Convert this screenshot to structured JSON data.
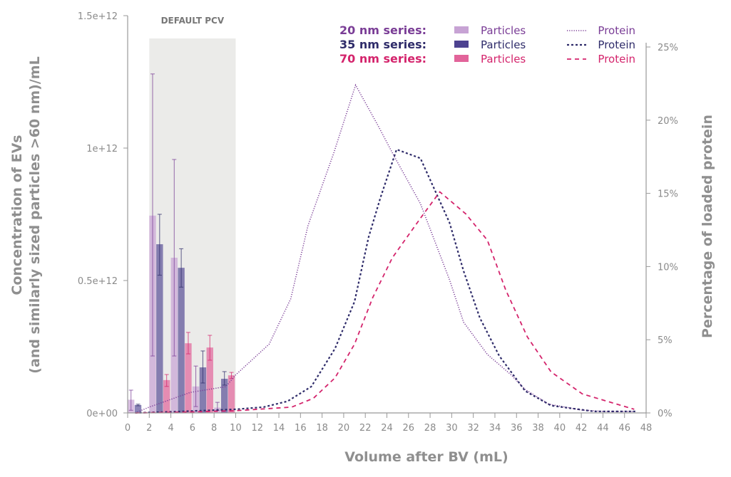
{
  "chart_data": {
    "type": "bar+line",
    "xlabel": "Volume after BV (mL)",
    "ylabel_left": [
      "Concentration of EVs",
      "(and similarly sized particles >60 nm)/mL"
    ],
    "ylabel_right": "Percentage of loaded protein",
    "xlim": [
      0,
      48
    ],
    "ylim_left": [
      0,
      1500000000000.0
    ],
    "ylim_right": [
      0,
      25
    ],
    "x_ticks": [
      "0",
      "2",
      "4",
      "6",
      "8",
      "10",
      "12",
      "14",
      "16",
      "18",
      "20",
      "22",
      "24",
      "26",
      "28",
      "30",
      "32",
      "34",
      "36",
      "38",
      "40",
      "42",
      "44",
      "46",
      "48"
    ],
    "y_left_ticks": [
      "0e+00",
      "0.5e+12",
      "1e+12",
      "1.5e+12"
    ],
    "y_right_ticks": [
      "0%",
      "5%",
      "10%",
      "15%",
      "20%",
      "25%"
    ],
    "grid": false,
    "shaded_region": {
      "label": "DEFAULT PCV",
      "x_range": [
        2,
        10
      ],
      "color": "#ebebe9"
    },
    "legend": {
      "placement": "top-right",
      "rows": [
        {
          "series": "20 nm series:",
          "bar_label": "Particles",
          "line_label": "Protein",
          "color": "#7a3d96",
          "bar_color": "#c7a3d4",
          "line_style": "dotted"
        },
        {
          "series": "35 nm series:",
          "bar_label": "Particles",
          "line_label": "Protein",
          "color": "#2f2c6a",
          "bar_color": "#4d4290",
          "line_style": "short-dashed"
        },
        {
          "series": "70 nm series:",
          "bar_label": "Particles",
          "line_label": "Protein",
          "color": "#d4246c",
          "bar_color": "#e2649a",
          "line_style": "dashed"
        }
      ]
    },
    "bar_groups": [
      [
        0,
        2
      ],
      [
        2,
        4
      ],
      [
        4,
        6
      ],
      [
        6,
        8
      ],
      [
        8,
        10
      ]
    ],
    "particles": [
      {
        "series": "20 nm",
        "values_e12": [
          0.05,
          0.745,
          0.586,
          0.1,
          0.02
        ],
        "err_high_e12": [
          0.086,
          1.28,
          0.957,
          0.177,
          0.04
        ],
        "err_low_e12": [
          0.01,
          0.215,
          0.215,
          0.024,
          0.01
        ]
      },
      {
        "series": "35 nm",
        "values_e12": [
          0.03,
          0.637,
          0.548,
          0.172,
          0.129
        ],
        "err_high_e12": [
          0.033,
          0.75,
          0.62,
          0.234,
          0.156
        ],
        "err_low_e12": [
          0.027,
          0.52,
          0.475,
          0.113,
          0.105
        ]
      },
      {
        "series": "70 nm",
        "values_e12": [
          0,
          0.124,
          0.263,
          0.247,
          0.142
        ],
        "err_high_e12": [
          0,
          0.145,
          0.304,
          0.293,
          0.153
        ],
        "err_low_e12": [
          0,
          0.1,
          0.223,
          0.199,
          0.13
        ]
      }
    ],
    "protein": [
      {
        "series": "20 nm",
        "x": [
          0.7,
          2,
          5.8,
          9.1,
          10,
          13.1,
          15.1,
          16.7,
          19.1,
          21.1,
          23.2,
          24.7,
          27.1,
          29.8,
          31.1,
          33.3,
          35.5,
          36.8,
          39,
          42,
          44,
          47
        ],
        "y": [
          0,
          0.4,
          1.4,
          1.8,
          2.6,
          4.7,
          7.8,
          12.8,
          17.8,
          22.4,
          19.6,
          17.5,
          14.3,
          9.1,
          6.2,
          4.0,
          2.6,
          1.6,
          0.6,
          0.2,
          0.1,
          0.1
        ]
      },
      {
        "series": "35 nm",
        "x": [
          0.7,
          5,
          10,
          12.6,
          14.8,
          17,
          19.2,
          21,
          22.3,
          23.4,
          24.9,
          27.1,
          29.8,
          31.1,
          32.6,
          34.4,
          36.8,
          39.2,
          43.2,
          47
        ],
        "y": [
          0,
          0.1,
          0.25,
          0.4,
          0.8,
          1.8,
          4.4,
          7.6,
          12,
          14.7,
          18,
          17.4,
          13,
          9.7,
          6.5,
          3.9,
          1.5,
          0.5,
          0.1,
          0.1
        ]
      },
      {
        "series": "70 nm",
        "x": [
          0.7,
          5,
          10,
          15.2,
          17.2,
          19.2,
          21,
          22.7,
          24.5,
          27.1,
          28.9,
          31.3,
          33.3,
          35,
          37,
          39.2,
          42.1,
          46.9
        ],
        "y": [
          0,
          0.05,
          0.15,
          0.4,
          1,
          2.4,
          4.7,
          7.9,
          10.6,
          13.3,
          15.1,
          13.6,
          11.8,
          8.4,
          5.2,
          2.8,
          1.3,
          0.25
        ]
      }
    ]
  }
}
